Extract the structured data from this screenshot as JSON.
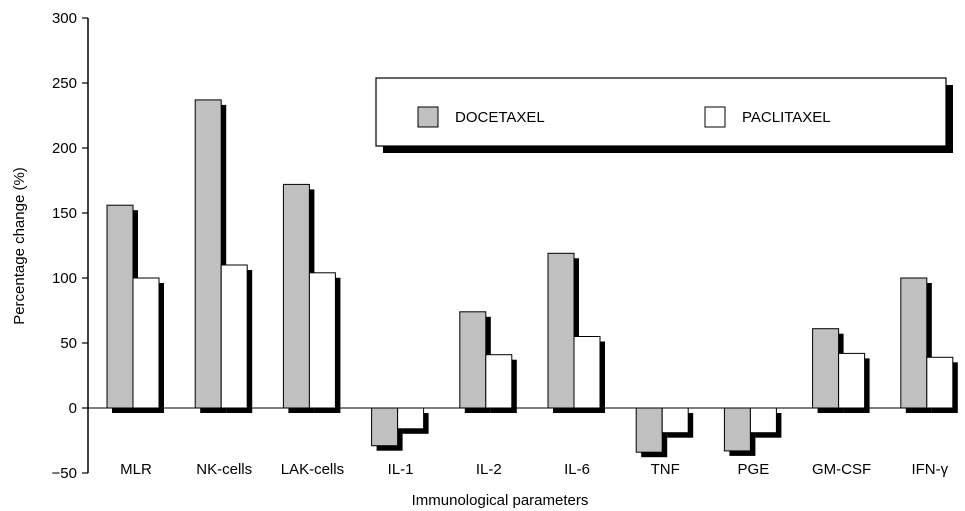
{
  "chart_data": {
    "type": "bar",
    "title": "",
    "xlabel": "Immunological parameters",
    "ylabel": "Percentage change (%)",
    "ylim": [
      -50,
      300
    ],
    "yticks": [
      "300",
      "250",
      "200",
      "150",
      "100",
      "50",
      "0",
      "−50"
    ],
    "ytick_values": [
      300,
      250,
      200,
      150,
      100,
      50,
      0,
      -50
    ],
    "grid": false,
    "legend_position": "top-right",
    "categories": [
      "MLR",
      "NK-cells",
      "LAK-cells",
      "IL-1",
      "IL-2",
      "IL-6",
      "TNF",
      "PGE",
      "GM-CSF",
      "IFN-γ"
    ],
    "series": [
      {
        "name": "DOCETAXEL",
        "color": "#c0c0c0",
        "values": [
          156,
          237,
          172,
          -29,
          74,
          119,
          -34,
          -33,
          61,
          100
        ]
      },
      {
        "name": "PACLITAXEL",
        "color": "#ffffff",
        "values": [
          100,
          110,
          104,
          -16,
          41,
          55,
          -19,
          -19,
          42,
          39
        ]
      }
    ]
  }
}
